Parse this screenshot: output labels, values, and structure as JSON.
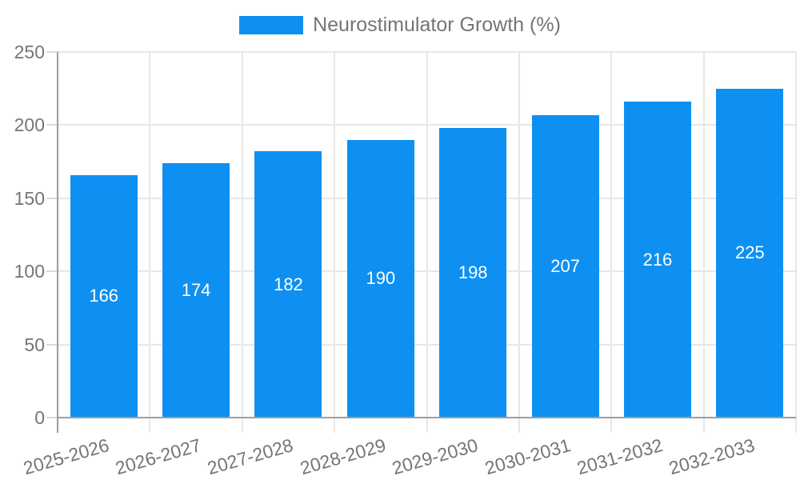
{
  "legend": {
    "label": "Neurostimulator Growth (%)"
  },
  "chart_data": {
    "type": "bar",
    "title": "Neurostimulator Growth (%)",
    "categories": [
      "2025-2026",
      "2026-2027",
      "2027-2028",
      "2028-2029",
      "2029-2030",
      "2030-2031",
      "2031-2032",
      "2032-2033"
    ],
    "values": [
      166,
      174,
      182,
      190,
      198,
      207,
      216,
      225
    ],
    "xlabel": "",
    "ylabel": "",
    "yticks": [
      0,
      50,
      100,
      150,
      200,
      250
    ],
    "ylim": [
      0,
      250
    ],
    "grid": true,
    "legend_position": "top",
    "colors": {
      "bar": "#0e90f2",
      "grid": "#e7e7e7",
      "axis": "#9e9e9e",
      "tick": "#dadada",
      "text": "#757575",
      "value_label": "#ffffff"
    }
  }
}
